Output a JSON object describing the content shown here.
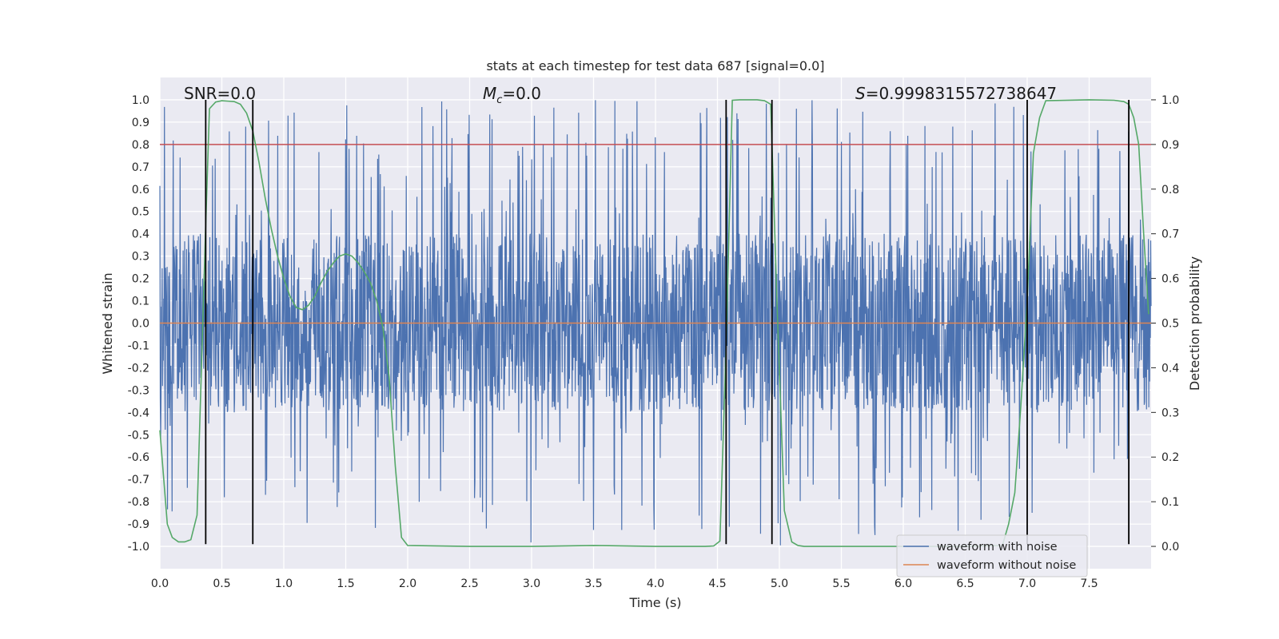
{
  "chart_data": {
    "type": "line",
    "title": "stats at each timestep for test data 687 [signal=0.0]",
    "xlabel": "Time (s)",
    "ylabel": "Whitened strain",
    "y2label": "Detection probability",
    "xlim": [
      0.0,
      8.0
    ],
    "ylim": [
      -1.1,
      1.1
    ],
    "y2lim": [
      -0.05,
      1.05
    ],
    "xticks": [
      "0.0",
      "0.5",
      "1.0",
      "1.5",
      "2.0",
      "2.5",
      "3.0",
      "3.5",
      "4.0",
      "4.5",
      "5.0",
      "5.5",
      "6.0",
      "6.5",
      "7.0",
      "7.5"
    ],
    "yticks": [
      "1.0",
      "0.9",
      "0.8",
      "0.7",
      "0.6",
      "0.5",
      "0.4",
      "0.3",
      "0.2",
      "0.1",
      "0.0",
      "-0.1",
      "-0.2",
      "-0.3",
      "-0.4",
      "-0.5",
      "-0.6",
      "-0.7",
      "-0.8",
      "-0.9",
      "-1.0"
    ],
    "y2ticks": [
      "1.0",
      "0.9",
      "0.8",
      "0.7",
      "0.6",
      "0.5",
      "0.4",
      "0.3",
      "0.2",
      "0.1",
      "0.0"
    ],
    "annotations": {
      "snr": "SNR=0.0",
      "mc_symbol": "M",
      "mc_sub": "c",
      "mc_value": "=0.0",
      "s_symbol": "S",
      "s_value": "=0.9998315572738647"
    },
    "threshold": {
      "value": 0.8,
      "color": "#c44e52"
    },
    "noise_trace": {
      "name": "waveform with noise",
      "color": "#4c72b0",
      "duration": 8.0,
      "core_amplitude": 0.4,
      "peak_max": 1.0,
      "peak_min": -1.0
    },
    "clean_trace": {
      "name": "waveform without noise",
      "color": "#dd8452",
      "value": 0.0
    },
    "detection_probability": {
      "name": "detection probability",
      "color": "#55a868",
      "x": [
        0.0,
        0.06,
        0.1,
        0.15,
        0.2,
        0.25,
        0.3,
        0.33,
        0.37,
        0.4,
        0.45,
        0.5,
        0.55,
        0.6,
        0.65,
        0.7,
        0.75,
        0.8,
        0.85,
        0.9,
        0.95,
        1.0,
        1.05,
        1.1,
        1.15,
        1.2,
        1.25,
        1.3,
        1.35,
        1.4,
        1.45,
        1.5,
        1.55,
        1.6,
        1.65,
        1.7,
        1.75,
        1.8,
        1.85,
        1.9,
        1.95,
        2.0,
        2.5,
        3.0,
        3.5,
        4.0,
        4.4,
        4.47,
        4.52,
        4.57,
        4.62,
        4.68,
        4.75,
        4.82,
        4.88,
        4.93,
        4.98,
        5.04,
        5.1,
        5.15,
        5.2,
        5.5,
        6.0,
        6.5,
        6.8,
        6.85,
        6.9,
        6.95,
        7.0,
        7.05,
        7.1,
        7.15,
        7.5,
        7.7,
        7.78,
        7.82,
        7.86,
        7.9,
        7.94,
        7.98
      ],
      "y": [
        0.26,
        0.05,
        0.02,
        0.01,
        0.01,
        0.015,
        0.07,
        0.35,
        0.72,
        0.98,
        0.995,
        0.998,
        0.997,
        0.996,
        0.99,
        0.97,
        0.93,
        0.86,
        0.78,
        0.71,
        0.65,
        0.6,
        0.56,
        0.535,
        0.53,
        0.54,
        0.56,
        0.59,
        0.615,
        0.635,
        0.65,
        0.655,
        0.65,
        0.635,
        0.615,
        0.59,
        0.55,
        0.49,
        0.38,
        0.18,
        0.02,
        0.002,
        0.0,
        0.0,
        0.002,
        0.0,
        0.0,
        0.001,
        0.012,
        0.45,
        0.999,
        1.0,
        1.0,
        1.0,
        0.998,
        0.99,
        0.55,
        0.08,
        0.01,
        0.002,
        0.0,
        0.0,
        0.0,
        0.0,
        0.002,
        0.05,
        0.12,
        0.32,
        0.55,
        0.88,
        0.96,
        0.998,
        1.0,
        0.999,
        0.996,
        0.99,
        0.96,
        0.9,
        0.7,
        0.52
      ]
    },
    "detection_markers": [
      0.37,
      0.75,
      4.57,
      4.94,
      7.0,
      7.82
    ],
    "legend": {
      "location": "lower right",
      "entries": [
        {
          "label": "waveform with noise",
          "color": "#4c72b0"
        },
        {
          "label": "waveform without noise",
          "color": "#dd8452"
        }
      ]
    }
  }
}
